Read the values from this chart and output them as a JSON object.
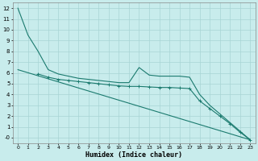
{
  "xlabel": "Humidex (Indice chaleur)",
  "bg_color": "#c8ecec",
  "line_color": "#1a7a6e",
  "grid_color": "#a8d4d4",
  "xlim": [
    -0.5,
    23.5
  ],
  "ylim": [
    -0.5,
    12.5
  ],
  "xticks": [
    0,
    1,
    2,
    3,
    4,
    5,
    6,
    7,
    8,
    9,
    10,
    11,
    12,
    13,
    14,
    15,
    16,
    17,
    18,
    19,
    20,
    21,
    22,
    23
  ],
  "yticks": [
    0,
    1,
    2,
    3,
    4,
    5,
    6,
    7,
    8,
    9,
    10,
    11,
    12
  ],
  "ytick_labels": [
    "-0",
    "1",
    "2",
    "3",
    "4",
    "5",
    "6",
    "7",
    "8",
    "9",
    "10",
    "11",
    "12"
  ],
  "line1_x": [
    0,
    1,
    2,
    3,
    4,
    5,
    6,
    7,
    8,
    9,
    10,
    11,
    12,
    13,
    14,
    15,
    16,
    17,
    18,
    19,
    20,
    21,
    22,
    23
  ],
  "line1_y": [
    12.0,
    9.5,
    8.0,
    6.3,
    5.9,
    5.7,
    5.5,
    5.4,
    5.3,
    5.2,
    5.1,
    5.1,
    6.5,
    5.8,
    5.7,
    5.7,
    5.7,
    5.6,
    4.0,
    3.0,
    2.2,
    1.4,
    0.6,
    -0.2
  ],
  "line2_x": [
    2,
    3,
    4,
    5,
    6,
    7,
    8,
    9,
    10,
    11,
    12,
    13,
    14,
    15,
    16,
    17,
    18,
    19,
    20,
    21,
    22,
    23
  ],
  "line2_y": [
    5.9,
    5.6,
    5.4,
    5.3,
    5.2,
    5.1,
    5.0,
    4.9,
    4.8,
    4.75,
    4.75,
    4.7,
    4.65,
    4.65,
    4.6,
    4.55,
    3.4,
    2.7,
    2.0,
    1.3,
    0.5,
    -0.2
  ],
  "line3_x": [
    0,
    23
  ],
  "line3_y": [
    6.3,
    -0.2
  ]
}
